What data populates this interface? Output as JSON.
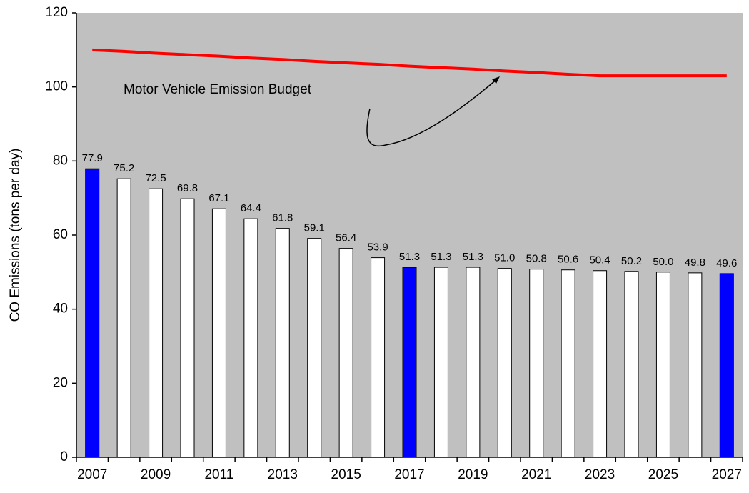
{
  "chart_data": {
    "type": "bar",
    "ylabel": "CO Emissions (tons per day)",
    "categories": [
      "2007",
      null,
      "2009",
      null,
      "2011",
      null,
      "2013",
      null,
      "2015",
      null,
      "2017",
      null,
      "2019",
      null,
      "2021",
      null,
      "2023",
      null,
      "2025",
      null,
      "2027"
    ],
    "values": [
      77.9,
      75.2,
      72.5,
      69.8,
      67.1,
      64.4,
      61.8,
      59.1,
      56.4,
      53.9,
      51.3,
      51.3,
      51.3,
      51.0,
      50.8,
      50.6,
      50.4,
      50.2,
      50.0,
      49.8,
      49.6
    ],
    "value_labels": [
      "77.9",
      "75.2",
      "72.5",
      "69.8",
      "67.1",
      "64.4",
      "61.8",
      "59.1",
      "56.4",
      "53.9",
      "51.3",
      "51.3",
      "51.3",
      "51.0",
      "50.8",
      "50.6",
      "50.4",
      "50.2",
      "50.0",
      "49.8",
      "49.6"
    ],
    "bar_colors": [
      "#0000ff",
      "#ffffff",
      "#ffffff",
      "#ffffff",
      "#ffffff",
      "#ffffff",
      "#ffffff",
      "#ffffff",
      "#ffffff",
      "#ffffff",
      "#0000ff",
      "#ffffff",
      "#ffffff",
      "#ffffff",
      "#ffffff",
      "#ffffff",
      "#ffffff",
      "#ffffff",
      "#ffffff",
      "#ffffff",
      "#0000ff"
    ],
    "budget_line": {
      "color": "#ff0000",
      "values": [
        110,
        109.6,
        109.1,
        108.7,
        108.3,
        107.8,
        107.4,
        106.9,
        106.5,
        106.1,
        105.6,
        105.2,
        104.8,
        104.3,
        103.9,
        103.4,
        103,
        103,
        103,
        103,
        103
      ]
    },
    "annotation": "Motor Vehicle Emission Budget",
    "ylim": [
      0,
      120
    ],
    "yticks": [
      0,
      20,
      40,
      60,
      80,
      100,
      120
    ],
    "plot_background": "#c0c0c0"
  }
}
